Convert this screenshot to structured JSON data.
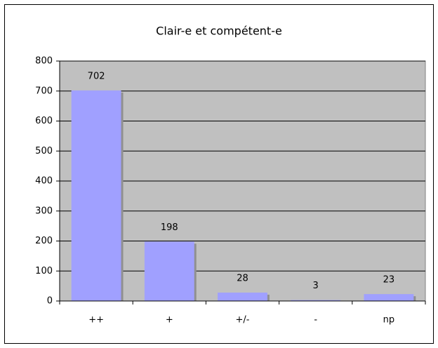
{
  "chart_data": {
    "type": "bar",
    "title": "Clair-e et compétent-e",
    "categories": [
      "++",
      "+",
      "+/-",
      "-",
      "np"
    ],
    "values": [
      702,
      198,
      28,
      3,
      23
    ],
    "color": "#a0a0ff",
    "ylim": [
      0,
      800
    ],
    "yticks": [
      0,
      100,
      200,
      300,
      400,
      500,
      600,
      700,
      800
    ],
    "grid": true
  }
}
